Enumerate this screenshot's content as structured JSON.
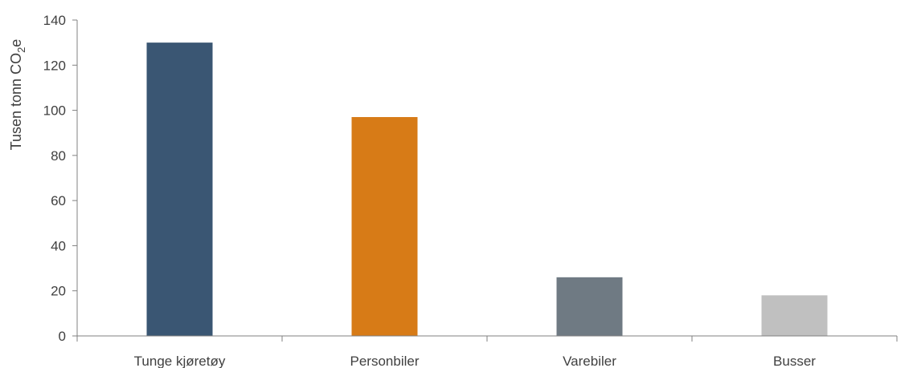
{
  "chart_data": {
    "type": "bar",
    "categories": [
      "Tunge kjøretøy",
      "Personbiler",
      "Varebiler",
      "Busser"
    ],
    "values": [
      130,
      97,
      26,
      18
    ],
    "colors": [
      "#3a5673",
      "#d77b17",
      "#6f7a83",
      "#c0c0c0"
    ],
    "ylabel": {
      "main": "Tusen tonn CO",
      "sub": "2",
      "tail": "e"
    },
    "ylim": [
      0,
      140
    ],
    "yticks": [
      0,
      20,
      40,
      60,
      80,
      100,
      120,
      140
    ],
    "grid": false
  }
}
